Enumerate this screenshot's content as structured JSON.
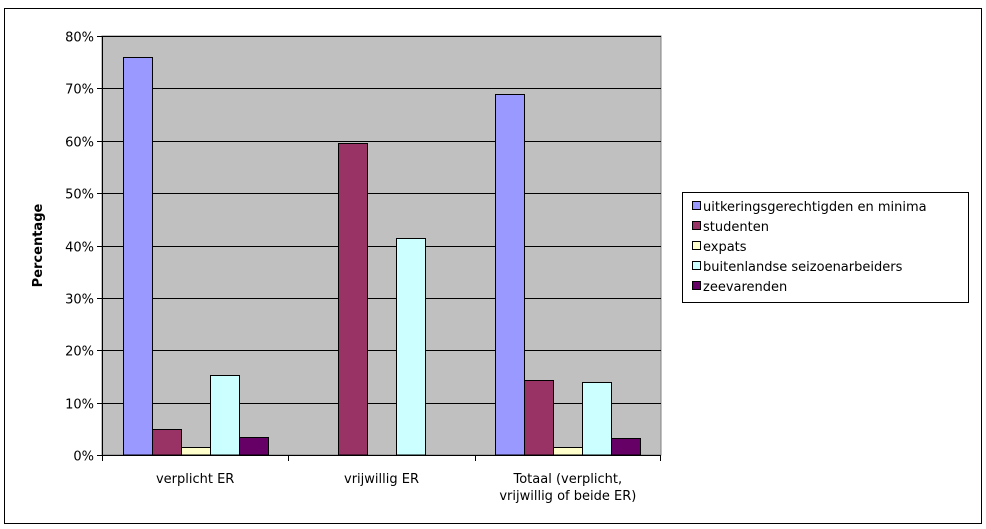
{
  "chart_data": {
    "type": "bar",
    "ylabel": "Percentage",
    "xlabel": "",
    "ylim": [
      0,
      80
    ],
    "yticks": [
      "0%",
      "10%",
      "20%",
      "30%",
      "40%",
      "50%",
      "60%",
      "70%",
      "80%"
    ],
    "categories": [
      [
        "verplicht ER"
      ],
      [
        "vrijwillig ER"
      ],
      [
        "Totaal (verplicht,",
        "vrijwillig of beide ER)"
      ]
    ],
    "series": [
      {
        "name": "uitkeringsgerechtigden en minima",
        "color": "#9999ff",
        "values": [
          76,
          0,
          69
        ]
      },
      {
        "name": "studenten",
        "color": "#993366",
        "values": [
          5,
          59.5,
          14.3
        ]
      },
      {
        "name": "expats",
        "color": "#ffffcc",
        "values": [
          1.6,
          0,
          1.5
        ]
      },
      {
        "name": "buitenlandse seizoenarbeiders",
        "color": "#ccffff",
        "values": [
          15.3,
          41.5,
          14
        ]
      },
      {
        "name": "zeevarenden",
        "color": "#660066",
        "values": [
          3.5,
          0,
          3.2
        ]
      }
    ],
    "plot_background": "#c0c0c0",
    "grid": true,
    "legend_position": "right"
  }
}
